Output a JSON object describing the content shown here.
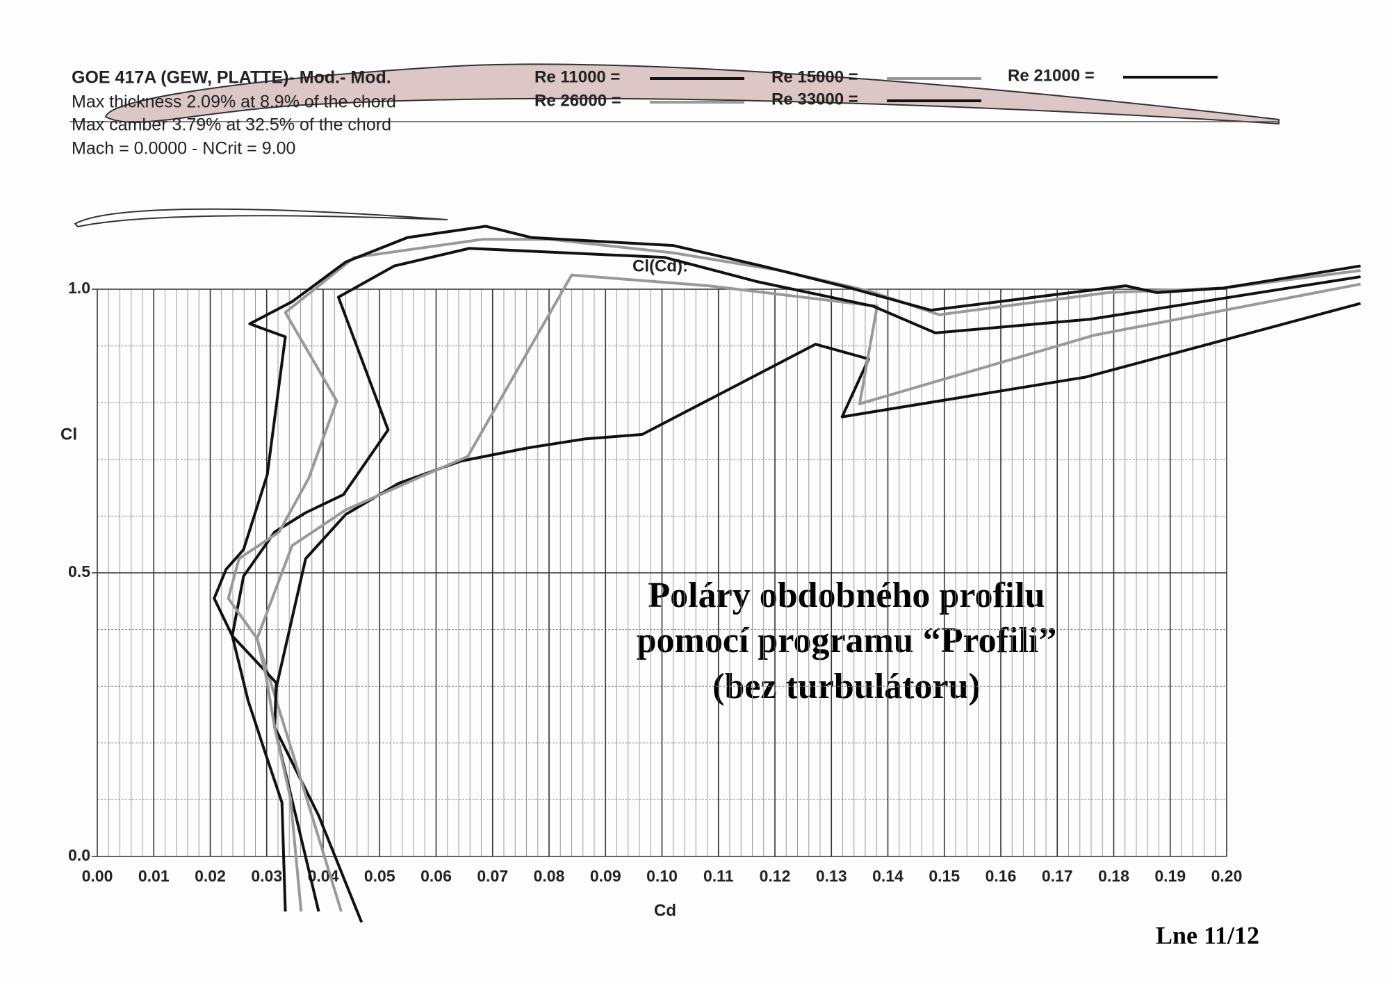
{
  "chart_data": {
    "type": "line",
    "title": "GOE 417A (GEW, PLATTE)- Mod.- Mod.",
    "info": [
      "Max thickness 2.09% at 8.9% of the chord",
      "Max camber 3.79% at 32.5% of the chord",
      "Mach = 0.0000 - NCrit = 9.00"
    ],
    "subtitle": "Cl(Cd):",
    "xlabel": "Cd",
    "ylabel": "Cl",
    "annotation": [
      "Poláry obdobného profilu",
      "pomocí programu “Profili”",
      "(bez turbulátoru)"
    ],
    "xlim": [
      0,
      0.2
    ],
    "ylim": [
      0,
      1
    ],
    "xticks": [
      {
        "value": 0,
        "label": "0.00"
      },
      {
        "value": 0.01,
        "label": "0.01"
      },
      {
        "value": 0.02,
        "label": "0.02"
      },
      {
        "value": 0.03,
        "label": "0.03"
      },
      {
        "value": 0.04,
        "label": "0.04"
      },
      {
        "value": 0.05,
        "label": "0.05"
      },
      {
        "value": 0.06,
        "label": "0.06"
      },
      {
        "value": 0.07,
        "label": "0.07"
      },
      {
        "value": 0.08,
        "label": "0.08"
      },
      {
        "value": 0.09,
        "label": "0.09"
      },
      {
        "value": 0.1,
        "label": "0.10"
      },
      {
        "value": 0.11,
        "label": "0.11"
      },
      {
        "value": 0.12,
        "label": "0.12"
      },
      {
        "value": 0.13,
        "label": "0.13"
      },
      {
        "value": 0.14,
        "label": "0.14"
      },
      {
        "value": 0.15,
        "label": "0.15"
      },
      {
        "value": 0.16,
        "label": "0.16"
      },
      {
        "value": 0.17,
        "label": "0.17"
      },
      {
        "value": 0.18,
        "label": "0.18"
      },
      {
        "value": 0.19,
        "label": "0.19"
      },
      {
        "value": 0.2,
        "label": "0.20"
      }
    ],
    "yticks": [
      {
        "value": 0,
        "label": "0.0"
      },
      {
        "value": 0.5,
        "label": "0.5"
      },
      {
        "value": 1,
        "label": "1.0"
      }
    ],
    "grid": true,
    "series": [
      {
        "name": "Re 11000 =",
        "color": "#111111",
        "x": [
          0.0468,
          0.0392,
          0.0314,
          0.0317,
          0.0369,
          0.044,
          0.0534,
          0.0644,
          0.0761,
          0.0863,
          0.0965,
          0.1272,
          0.1366,
          0.1319,
          0.175,
          0.2237
        ],
        "values": [
          -0.116,
          0.072,
          0.228,
          0.298,
          0.525,
          0.603,
          0.658,
          0.697,
          0.72,
          0.736,
          0.744,
          0.903,
          0.877,
          0.775,
          0.845,
          0.975
        ]
      },
      {
        "name": "Re 15000 =",
        "color": "#999999",
        "x": [
          0.0432,
          0.0361,
          0.0283,
          0.0345,
          0.044,
          0.0565,
          0.0656,
          0.084,
          0.1083,
          0.1381,
          0.135,
          0.1766,
          0.2237
        ],
        "values": [
          -0.097,
          0.134,
          0.384,
          0.548,
          0.611,
          0.666,
          0.705,
          1.025,
          1.006,
          0.97,
          0.798,
          0.919,
          1.009
        ]
      },
      {
        "name": "Re 21000 =",
        "color": "#111111",
        "x": [
          0.0392,
          0.0314,
          0.0317,
          0.0239,
          0.0259,
          0.0314,
          0.0369,
          0.0436,
          0.0515,
          0.0427,
          0.0526,
          0.0659,
          0.1005,
          0.117,
          0.1374,
          0.1484,
          0.1758,
          0.2237
        ],
        "values": [
          -0.097,
          0.228,
          0.306,
          0.389,
          0.494,
          0.572,
          0.606,
          0.638,
          0.752,
          0.986,
          1.041,
          1.072,
          1.056,
          1.013,
          0.97,
          0.923,
          0.947,
          1.022
        ]
      },
      {
        "name": "Re 26000 =",
        "color": "#999999",
        "x": [
          0.0361,
          0.0342,
          0.0314,
          0.0298,
          0.0283,
          0.0232,
          0.0251,
          0.0322,
          0.0374,
          0.0424,
          0.0333,
          0.0455,
          0.0683,
          0.0801,
          0.102,
          0.1209,
          0.1366,
          0.1491,
          0.179,
          0.1994,
          0.2237
        ],
        "values": [
          -0.097,
          0.103,
          0.228,
          0.322,
          0.384,
          0.455,
          0.525,
          0.572,
          0.666,
          0.803,
          0.959,
          1.056,
          1.088,
          1.088,
          1.064,
          1.033,
          0.997,
          0.955,
          0.994,
          1.002,
          1.033
        ]
      },
      {
        "name": "Re 33000 =",
        "color": "#111111",
        "x": [
          0.0333,
          0.0327,
          0.0298,
          0.0267,
          0.0239,
          0.0207,
          0.0228,
          0.0259,
          0.0301,
          0.0333,
          0.027,
          0.0345,
          0.044,
          0.0549,
          0.0688,
          0.0769,
          0.102,
          0.1177,
          0.1334,
          0.1476,
          0.1821,
          0.1876,
          0.1994,
          0.2237
        ],
        "values": [
          -0.097,
          0.095,
          0.181,
          0.275,
          0.389,
          0.455,
          0.506,
          0.541,
          0.673,
          0.916,
          0.939,
          0.978,
          1.048,
          1.091,
          1.111,
          1.091,
          1.077,
          1.041,
          1.002,
          0.963,
          1.006,
          0.994,
          1.002,
          1.041
        ]
      }
    ]
  },
  "footer": "Lne 11/12"
}
